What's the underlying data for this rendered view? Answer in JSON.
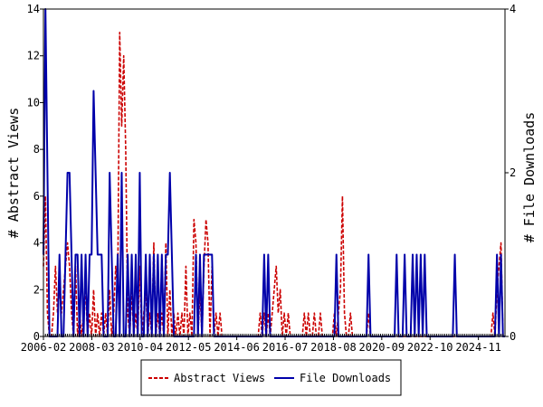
{
  "chart_data": {
    "type": "line",
    "title": "",
    "xlabel": "",
    "ylabel": "# Abstract Views",
    "y2label": "# File Downloads",
    "x_tick_labels": [
      "2006-02",
      "2008-03",
      "2010-04",
      "2012-05",
      "2014-06",
      "2016-07",
      "2018-08",
      "2020-09",
      "2022-10",
      "2024-11"
    ],
    "ylim": [
      0,
      14
    ],
    "y_ticks": [
      0,
      2,
      4,
      6,
      8,
      10,
      12,
      14
    ],
    "y2lim": [
      0,
      4
    ],
    "y2_ticks": [
      0,
      2,
      4
    ],
    "grid": false,
    "legend_position": "bottom-center",
    "x_index_range": [
      0,
      230
    ],
    "series": [
      {
        "name": "Abstract Views",
        "axis": "left",
        "color": "#cc0000",
        "dash": "dashed",
        "points": [
          [
            0,
            3
          ],
          [
            1,
            6
          ],
          [
            2,
            1
          ],
          [
            5,
            1
          ],
          [
            6,
            3
          ],
          [
            7,
            1
          ],
          [
            8,
            2
          ],
          [
            9,
            1
          ],
          [
            10,
            2
          ],
          [
            11,
            3
          ],
          [
            12,
            4
          ],
          [
            13,
            3
          ],
          [
            14,
            1
          ],
          [
            16,
            3
          ],
          [
            18,
            1
          ],
          [
            20,
            1
          ],
          [
            21,
            2
          ],
          [
            23,
            1
          ],
          [
            25,
            2
          ],
          [
            27,
            1
          ],
          [
            29,
            1
          ],
          [
            31,
            1
          ],
          [
            33,
            2
          ],
          [
            35,
            1
          ],
          [
            36,
            3
          ],
          [
            37,
            2
          ],
          [
            38,
            13
          ],
          [
            39,
            9
          ],
          [
            40,
            12
          ],
          [
            41,
            8
          ],
          [
            42,
            1
          ],
          [
            44,
            2
          ],
          [
            46,
            1
          ],
          [
            48,
            3
          ],
          [
            50,
            1
          ],
          [
            51,
            2
          ],
          [
            53,
            1
          ],
          [
            55,
            4
          ],
          [
            57,
            1
          ],
          [
            59,
            1
          ],
          [
            61,
            4
          ],
          [
            63,
            2
          ],
          [
            65,
            1
          ],
          [
            67,
            1
          ],
          [
            69,
            1
          ],
          [
            71,
            3
          ],
          [
            73,
            1
          ],
          [
            75,
            5
          ],
          [
            76,
            4
          ],
          [
            78,
            2
          ],
          [
            80,
            3
          ],
          [
            81,
            5
          ],
          [
            82,
            4
          ],
          [
            84,
            3
          ],
          [
            86,
            1
          ],
          [
            88,
            1
          ],
          [
            108,
            1
          ],
          [
            110,
            1
          ],
          [
            112,
            1
          ],
          [
            114,
            1
          ],
          [
            115,
            2
          ],
          [
            116,
            3
          ],
          [
            117,
            1
          ],
          [
            118,
            2
          ],
          [
            120,
            1
          ],
          [
            122,
            1
          ],
          [
            130,
            1
          ],
          [
            132,
            1
          ],
          [
            135,
            1
          ],
          [
            138,
            1
          ],
          [
            145,
            1
          ],
          [
            147,
            1
          ],
          [
            148,
            2
          ],
          [
            149,
            6
          ],
          [
            150,
            1
          ],
          [
            153,
            1
          ],
          [
            162,
            1
          ],
          [
            224,
            1
          ],
          [
            226,
            2
          ],
          [
            227,
            3
          ],
          [
            228,
            4
          ]
        ]
      },
      {
        "name": "File Downloads",
        "axis": "right",
        "color": "#0000aa",
        "dash": "solid",
        "points": [
          [
            0,
            1
          ],
          [
            1,
            4
          ],
          [
            2,
            2
          ],
          [
            8,
            1
          ],
          [
            11,
            1
          ],
          [
            12,
            2
          ],
          [
            13,
            2
          ],
          [
            14,
            1
          ],
          [
            16,
            1
          ],
          [
            17,
            1
          ],
          [
            19,
            1
          ],
          [
            21,
            1
          ],
          [
            23,
            1
          ],
          [
            24,
            1
          ],
          [
            25,
            3
          ],
          [
            26,
            2
          ],
          [
            27,
            1
          ],
          [
            28,
            1
          ],
          [
            29,
            1
          ],
          [
            33,
            2
          ],
          [
            34,
            1
          ],
          [
            37,
            1
          ],
          [
            39,
            2
          ],
          [
            42,
            1
          ],
          [
            44,
            1
          ],
          [
            46,
            1
          ],
          [
            48,
            2
          ],
          [
            51,
            1
          ],
          [
            53,
            1
          ],
          [
            55,
            1
          ],
          [
            57,
            1
          ],
          [
            59,
            1
          ],
          [
            61,
            1
          ],
          [
            62,
            1
          ],
          [
            63,
            2
          ],
          [
            64,
            1
          ],
          [
            76,
            1
          ],
          [
            78,
            1
          ],
          [
            80,
            1
          ],
          [
            81,
            1
          ],
          [
            82,
            1
          ],
          [
            83,
            1
          ],
          [
            84,
            1
          ],
          [
            110,
            1
          ],
          [
            112,
            1
          ],
          [
            146,
            1
          ],
          [
            162,
            1
          ],
          [
            176,
            1
          ],
          [
            180,
            1
          ],
          [
            184,
            1
          ],
          [
            186,
            1
          ],
          [
            188,
            1
          ],
          [
            190,
            1
          ],
          [
            205,
            1
          ],
          [
            226,
            1
          ],
          [
            228,
            1
          ]
        ]
      }
    ]
  }
}
